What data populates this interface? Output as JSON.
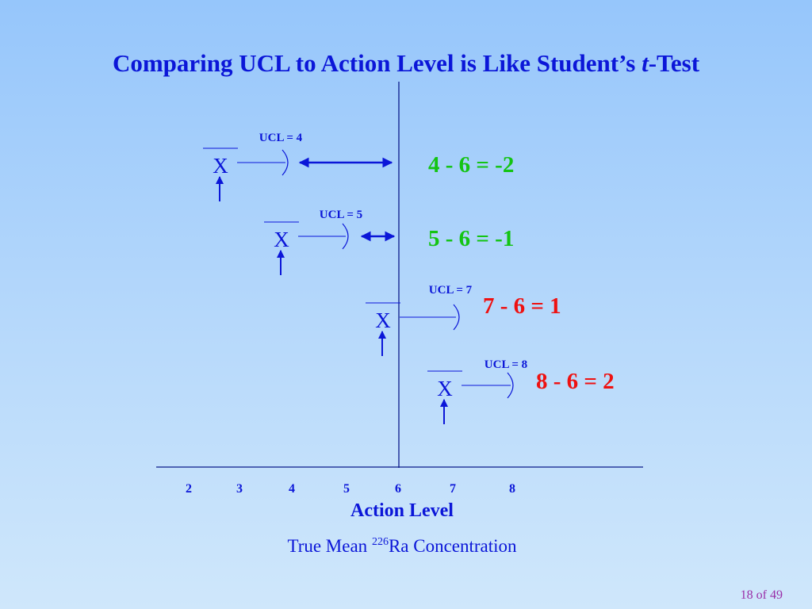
{
  "title": {
    "prefix": "Comparing UCL to Action Level is Like Student’s ",
    "italic": "t",
    "suffix": "-Test"
  },
  "axis": {
    "ticks": [
      "2",
      "3",
      "4",
      "5",
      "6",
      "7",
      "8"
    ],
    "action_label": "Action Level",
    "subtitle_prefix": "True Mean ",
    "subtitle_sup": "226",
    "subtitle_suffix": "Ra Concentration"
  },
  "cases": [
    {
      "xbar": "X",
      "ucl_label": "UCL = 4",
      "equation": "4 - 6 = -2",
      "color": "#13c413"
    },
    {
      "xbar": "X",
      "ucl_label": "UCL = 5",
      "equation": "5 - 6 = -1",
      "color": "#13c413"
    },
    {
      "xbar": "X",
      "ucl_label": "UCL = 7",
      "equation": "7 - 6 = 1",
      "color": "#ee1111"
    },
    {
      "xbar": "X",
      "ucl_label": "UCL = 8",
      "equation": "8 - 6 = 2",
      "color": "#ee1111"
    }
  ],
  "page_number": "18 of 49",
  "colors": {
    "accent": "#0b16d8",
    "axis_line": "#0a1a8a",
    "page_number": "#9a2fa8"
  }
}
